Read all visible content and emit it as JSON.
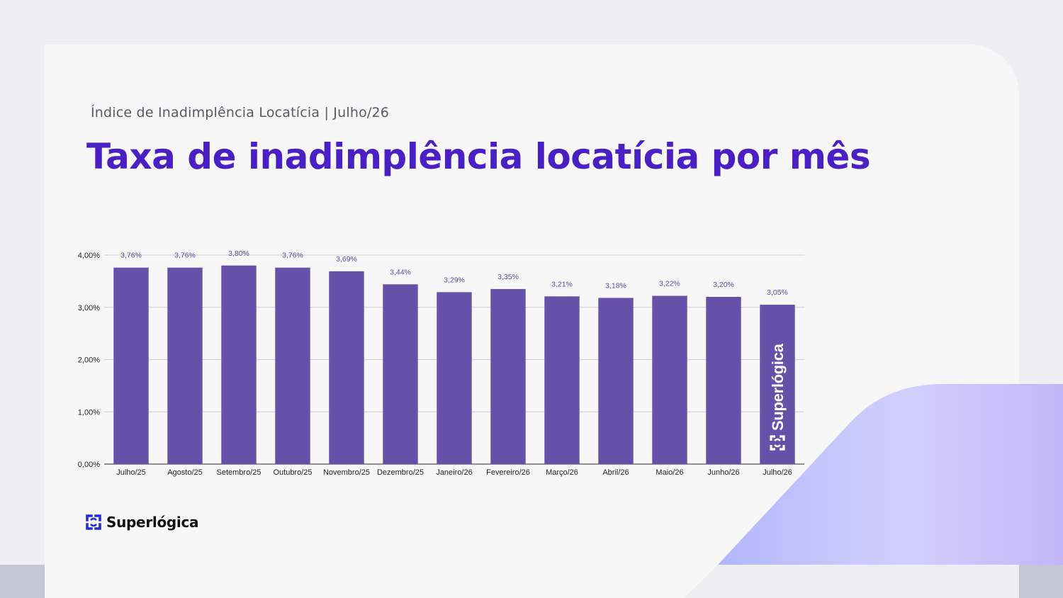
{
  "header": {
    "subtitle": "Índice de Inadimplência Locatícia | Julho/26",
    "title": "Taxa de inadimplência locatícia por mês"
  },
  "brand": {
    "name": "Superlógica",
    "watermark": "Superlógica",
    "logo_icon": "superlogica-logo-icon"
  },
  "colors": {
    "title": "#4a1fc4",
    "bar": "#6750a8",
    "data_label": "#5a4a9e",
    "accent_gradient": [
      "#b6bbfb",
      "#cfcefd",
      "#c4b8f8"
    ]
  },
  "chart_data": {
    "type": "bar",
    "categories": [
      "Julho/25",
      "Agosto/25",
      "Setembro/25",
      "Outubro/25",
      "Novembro/25",
      "Dezembro/25",
      "Janeiro/26",
      "Fevereiro/26",
      "Março/26",
      "Abril/26",
      "Maio/26",
      "Junho/26",
      "Julho/26"
    ],
    "values": [
      3.76,
      3.76,
      3.8,
      3.76,
      3.69,
      3.44,
      3.29,
      3.35,
      3.21,
      3.18,
      3.22,
      3.2,
      3.05
    ],
    "data_labels": [
      "3,76%",
      "3,76%",
      "3,80%",
      "3,76%",
      "3,69%",
      "3,44%",
      "3,29%",
      "3,35%",
      "3,21%",
      "3,18%",
      "3,22%",
      "3,20%",
      "3,05%"
    ],
    "y_ticks": [
      0,
      1,
      2,
      3,
      4
    ],
    "y_tick_labels": [
      "0,00%",
      "1,00%",
      "2,00%",
      "3,00%",
      "4,00%"
    ],
    "ylim": [
      0,
      4
    ],
    "grid": true,
    "legend": "none",
    "title": "",
    "xlabel": "",
    "ylabel": ""
  }
}
